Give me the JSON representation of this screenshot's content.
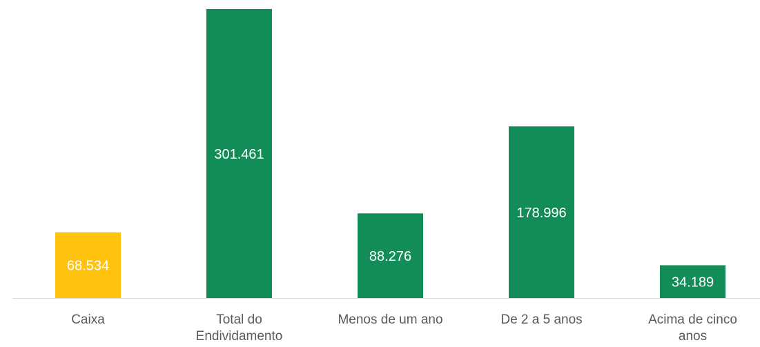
{
  "chart_data": {
    "type": "bar",
    "categories": [
      "Caixa",
      "Total do Endividamento",
      "Menos de um ano",
      "De 2 a 5 anos",
      "Acima de cinco anos"
    ],
    "values": [
      68534,
      301461,
      88276,
      178996,
      34189
    ],
    "value_labels": [
      "68.534",
      "301.461",
      "88.276",
      "178.996",
      "34.189"
    ],
    "colors": [
      "#ffc20e",
      "#138d57",
      "#138d57",
      "#138d57",
      "#138d57"
    ]
  }
}
